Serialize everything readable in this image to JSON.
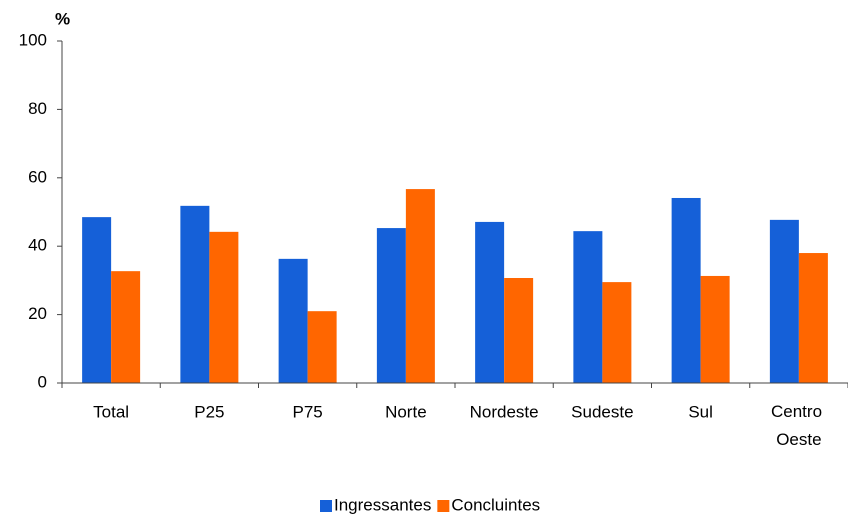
{
  "chart_data": {
    "type": "bar",
    "y_label": "%",
    "categories": [
      "Total",
      "P25",
      "P75",
      "Norte",
      "Nordeste",
      "Sudeste",
      "Sul",
      "Centro Oeste"
    ],
    "series": [
      {
        "name": "Ingressantes",
        "color": "#1560d8",
        "values": [
          48.5,
          51.8,
          36.3,
          45.3,
          47.1,
          44.4,
          54.1,
          47.7
        ]
      },
      {
        "name": "Concluintes",
        "color": "#ff6600",
        "values": [
          32.7,
          44.2,
          21,
          56.7,
          30.7,
          29.5,
          31.3,
          38
        ]
      }
    ],
    "ylim": [
      0,
      100
    ],
    "yticks": [
      0,
      20,
      40,
      60,
      80,
      100
    ],
    "grid": false,
    "legend": "bottom"
  }
}
